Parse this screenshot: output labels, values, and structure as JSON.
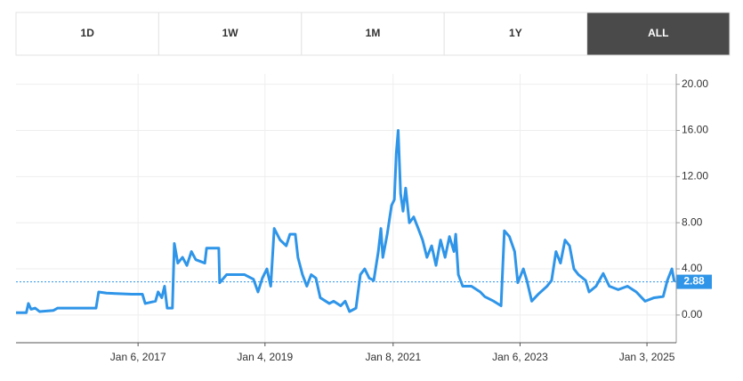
{
  "buttons": [
    "1D",
    "1W",
    "1M",
    "1Y",
    "ALL"
  ],
  "active_button": 4,
  "chart_data": {
    "type": "line",
    "x": [
      "2015-02-06",
      "2015-04-06",
      "2015-04-18",
      "2015-05-03",
      "2015-05-27",
      "2015-06-21",
      "2015-09-09",
      "2015-10-03",
      "2016-03-30",
      "2016-05-10",
      "2016-05-25",
      "2016-07-09",
      "2016-11-30",
      "2017-01-31",
      "2017-02-16",
      "2017-04-16",
      "2017-05-01",
      "2017-05-22",
      "2017-06-07",
      "2017-06-22",
      "2017-07-22",
      "2017-08-02",
      "2017-08-22",
      "2017-09-18",
      "2017-10-13",
      "2017-11-08",
      "2017-12-03",
      "2018-01-24",
      "2018-02-03",
      "2018-04-14",
      "2018-04-19",
      "2018-05-29",
      "2018-09-09",
      "2018-10-30",
      "2018-11-25",
      "2018-12-20",
      "2019-01-15",
      "2019-02-06",
      "2019-02-26",
      "2019-04-01",
      "2019-05-06",
      "2019-05-27",
      "2019-06-27",
      "2019-07-12",
      "2019-08-07",
      "2019-09-01",
      "2019-09-26",
      "2019-10-23",
      "2019-11-17",
      "2020-01-08",
      "2020-02-02",
      "2020-03-13",
      "2020-04-08",
      "2020-05-03",
      "2020-06-09",
      "2020-07-04",
      "2020-07-29",
      "2020-08-24",
      "2020-09-19",
      "2020-10-15",
      "2020-10-30",
      "2020-11-10",
      "2020-12-05",
      "2020-12-30",
      "2021-01-15",
      "2021-01-26",
      "2021-02-06",
      "2021-02-20",
      "2021-03-06",
      "2021-03-21",
      "2021-04-11",
      "2021-05-06",
      "2021-06-01",
      "2021-06-26",
      "2021-07-21",
      "2021-08-17",
      "2021-09-11",
      "2021-10-07",
      "2021-11-02",
      "2021-11-27",
      "2021-12-23",
      "2022-01-02",
      "2022-01-17",
      "2022-02-11",
      "2022-04-02",
      "2022-05-23",
      "2022-06-17",
      "2022-08-08",
      "2022-09-19",
      "2022-10-08",
      "2022-11-06",
      "2022-12-06",
      "2022-12-24",
      "2023-01-25",
      "2023-02-14",
      "2023-03-14",
      "2023-04-20",
      "2023-06-10",
      "2023-07-06",
      "2023-07-31",
      "2023-08-26",
      "2023-09-21",
      "2023-10-17",
      "2023-11-11",
      "2023-12-07",
      "2024-01-17",
      "2024-02-06",
      "2024-03-17",
      "2024-04-27",
      "2024-06-01",
      "2024-07-22",
      "2024-09-13",
      "2024-11-03",
      "2024-12-23",
      "2025-02-13",
      "2025-04-06",
      "2025-04-30",
      "2025-05-26",
      "2025-06-09"
    ],
    "series": [
      {
        "color": "#2f95e8",
        "values": [
          0.2,
          0.2,
          1.0,
          0.5,
          0.6,
          0.3,
          0.4,
          0.6,
          0.6,
          0.6,
          2.0,
          1.9,
          1.8,
          1.8,
          1.0,
          1.2,
          2.0,
          1.5,
          2.5,
          0.6,
          0.6,
          6.2,
          4.5,
          5.0,
          4.3,
          5.5,
          4.8,
          4.5,
          5.8,
          5.8,
          2.8,
          3.5,
          3.5,
          3.1,
          2.0,
          3.2,
          4.0,
          2.5,
          7.5,
          6.5,
          6.0,
          7.0,
          7.0,
          5.0,
          3.5,
          2.5,
          3.5,
          3.2,
          1.5,
          1.0,
          1.2,
          0.8,
          1.2,
          0.3,
          0.6,
          3.5,
          4.0,
          3.2,
          3.0,
          5.5,
          7.5,
          5.0,
          7.0,
          9.5,
          10.0,
          14.0,
          16.0,
          10.5,
          9.0,
          11.0,
          8.0,
          8.5,
          7.5,
          6.5,
          5.0,
          6.0,
          4.3,
          6.5,
          5.0,
          6.8,
          5.5,
          7.0,
          3.5,
          2.5,
          2.5,
          2.0,
          1.6,
          1.2,
          0.8,
          7.3,
          6.8,
          5.5,
          2.8,
          4.0,
          3.0,
          1.2,
          1.8,
          2.5,
          3.0,
          5.5,
          4.5,
          6.5,
          6.0,
          4.0,
          3.5,
          3.0,
          2.0,
          2.5,
          3.6,
          2.5,
          2.2,
          2.5,
          2.0,
          1.2,
          1.5,
          1.6,
          3.0,
          4.0,
          2.88
        ]
      }
    ],
    "xlim": [
      "2015-02-06",
      "2025-06-20"
    ],
    "xticks": [
      {
        "value": "2017-01-06",
        "label": "Jan 6, 2017"
      },
      {
        "value": "2019-01-04",
        "label": "Jan 4, 2019"
      },
      {
        "value": "2021-01-08",
        "label": "Jan 8, 2021"
      },
      {
        "value": "2023-01-06",
        "label": "Jan 6, 2023"
      },
      {
        "value": "2025-01-03",
        "label": "Jan 3, 2025"
      }
    ],
    "ylim": [
      -2.4,
      20.9
    ],
    "yticks": [
      {
        "value": 0,
        "label": "0.00"
      },
      {
        "value": 4,
        "label": "4.00"
      },
      {
        "value": 8,
        "label": "8.00"
      },
      {
        "value": 12,
        "label": "12.00"
      },
      {
        "value": 16,
        "label": "16.00"
      },
      {
        "value": 20,
        "label": "20.00"
      }
    ],
    "grid": true
  }
}
